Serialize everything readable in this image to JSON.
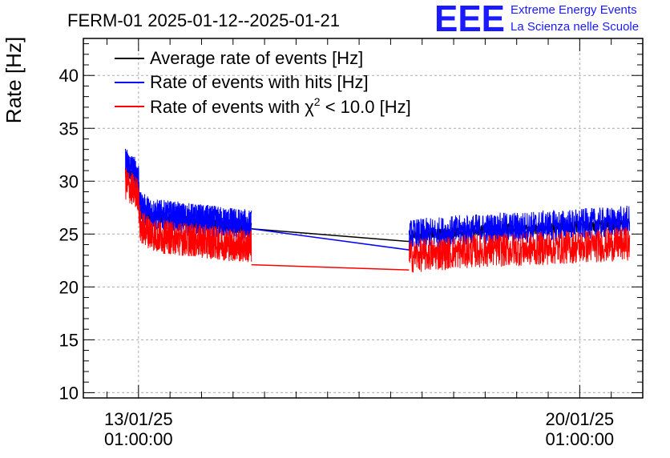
{
  "logo": {
    "mark": "EEE",
    "line1": "Extreme Energy Events",
    "line2": "La Scienza nelle Scuole",
    "color": "#1a1aff"
  },
  "chart_data": {
    "type": "line",
    "title": "FERM-01 2025-01-12--2025-01-21",
    "ylabel": "Rate [Hz]",
    "xlabel": "",
    "ylim": [
      9.5,
      43.5
    ],
    "xlim_days": [
      "2025-01-12 04:00",
      "2025-01-21 01:00"
    ],
    "yticks": [
      10,
      15,
      20,
      25,
      30,
      35,
      40
    ],
    "xticks": [
      {
        "date": "2025-01-13 01:00",
        "line1": "13/01/25",
        "line2": "01:00:00"
      },
      {
        "date": "2025-01-20 01:00",
        "line1": "20/01/25",
        "line2": "01:00:00"
      }
    ],
    "grid": true,
    "legend_position": "top-left",
    "legend_chi_symbol": "χ",
    "legend_chi_exponent": "2",
    "legend_chi_rest": " < 10.0 [Hz]",
    "legend_chi_prefix": "Rate of events with ",
    "series": [
      {
        "name": "Average rate of events [Hz]",
        "color": "#000000",
        "noise": 0.55,
        "segments": [
          {
            "x": [
              "2025-01-12 20:00",
              "2025-01-13 01:00",
              "2025-01-13 01:30",
              "2025-01-13 08:00",
              "2025-01-14 20:00"
            ],
            "y": [
              31.0,
              30.0,
              27.0,
              26.5,
              25.5
            ]
          },
          {
            "x": [
              "2025-01-17 08:00",
              "2025-01-18 08:00",
              "2025-01-19 08:00",
              "2025-01-20 08:00",
              "2025-01-20 20:00"
            ],
            "y": [
              24.8,
              25.3,
              25.5,
              25.8,
              26.0
            ]
          }
        ],
        "gap": {
          "x": [
            "2025-01-14 20:00",
            "2025-01-17 08:00"
          ],
          "y": [
            25.5,
            24.3
          ]
        }
      },
      {
        "name": "Rate of events with hits [Hz]",
        "color": "#0000ff",
        "noise": 1.5,
        "segments": [
          {
            "x": [
              "2025-01-12 20:00",
              "2025-01-13 01:00",
              "2025-01-13 01:30",
              "2025-01-13 08:00",
              "2025-01-14 20:00"
            ],
            "y": [
              31.8,
              30.5,
              27.5,
              26.8,
              25.8
            ]
          },
          {
            "x": [
              "2025-01-17 08:00",
              "2025-01-18 08:00",
              "2025-01-19 08:00",
              "2025-01-20 08:00",
              "2025-01-20 20:00"
            ],
            "y": [
              24.9,
              25.4,
              25.7,
              26.0,
              26.2
            ]
          }
        ],
        "gap": {
          "x": [
            "2025-01-14 20:00",
            "2025-01-17 08:00"
          ],
          "y": [
            25.5,
            23.5
          ]
        }
      },
      {
        "name": "Rate of events with χ2 < 10.0 [Hz]",
        "color": "#ff0000",
        "noise": 1.6,
        "segments": [
          {
            "x": [
              "2025-01-12 20:00",
              "2025-01-13 01:00",
              "2025-01-13 01:30",
              "2025-01-13 08:00",
              "2025-01-14 20:00"
            ],
            "y": [
              29.8,
              28.7,
              25.7,
              24.8,
              23.8
            ]
          },
          {
            "x": [
              "2025-01-17 08:00",
              "2025-01-18 08:00",
              "2025-01-19 08:00",
              "2025-01-20 08:00",
              "2025-01-20 20:00"
            ],
            "y": [
              22.9,
              23.4,
              23.6,
              23.9,
              24.1
            ]
          }
        ],
        "gap": {
          "x": [
            "2025-01-14 20:00",
            "2025-01-17 08:00"
          ],
          "y": [
            22.1,
            21.6
          ]
        }
      }
    ]
  }
}
